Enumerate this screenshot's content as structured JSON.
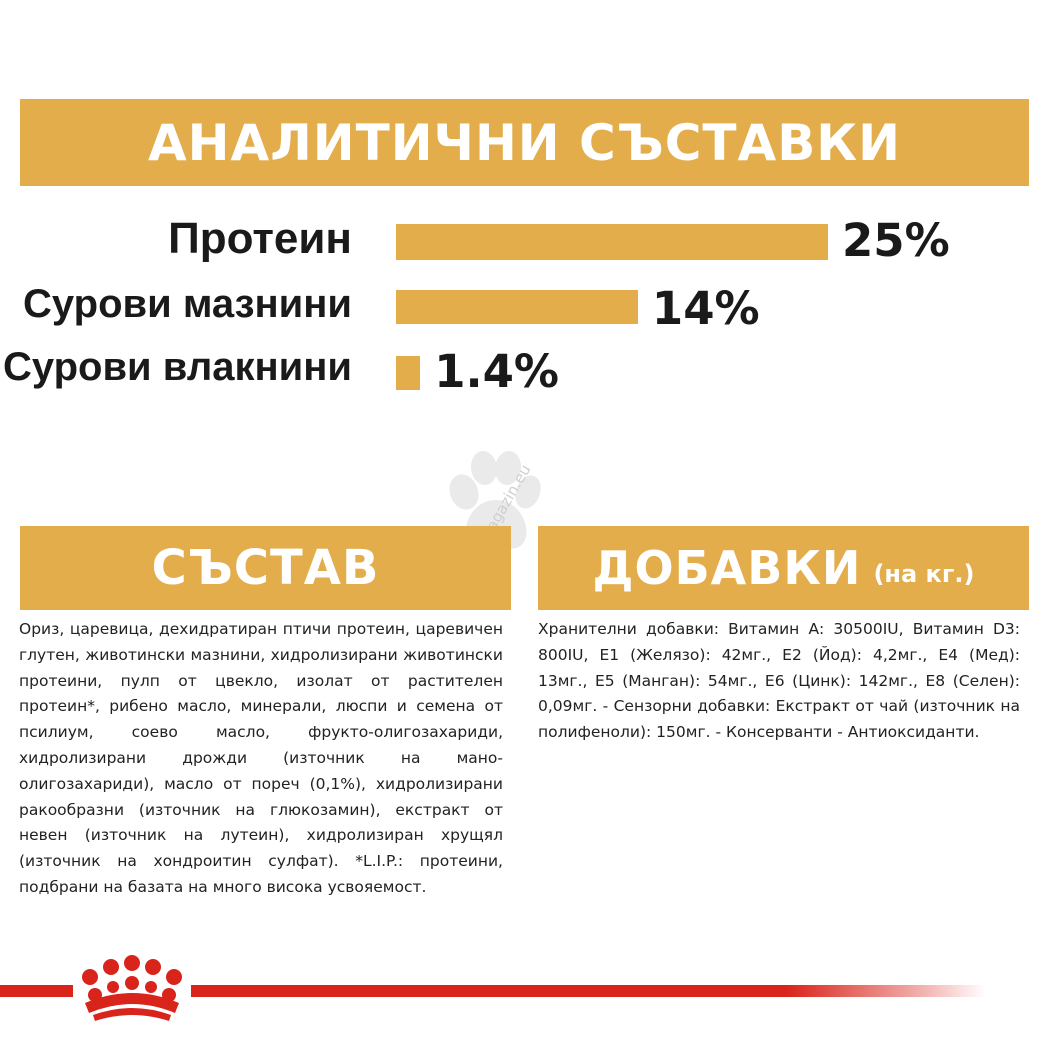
{
  "analytical": {
    "title": "АНАЛИТИЧНИ СЪСТАВКИ",
    "rows": [
      {
        "label": "Протеин",
        "value_text": "25%",
        "value": 25
      },
      {
        "label": "Сурови мазнини",
        "value_text": "14%",
        "value": 14
      },
      {
        "label": "Сурови влакнини",
        "value_text": "1.4%",
        "value": 1.4
      }
    ]
  },
  "composition": {
    "title": "СЪСТАВ",
    "text": "Ориз, царевица, дехидратиран птичи протеин, царевичен глутен, животински мазнини, хидролизирани животински протеини, пулп от цвекло, изолат от растителен протеин*, рибено масло, минерали, люспи и семена от псилиум, соево масло, фрукто-олигозахариди, хидролизирани дрожди (източник на мано- олигозахариди), масло от пореч (0,1%), хидролизирани ракообразни (източник на глюкозамин), екстракт от невен (източник на лутеин), хидролизиран хрущял (източник на хондроитин сулфат). *L.I.P.: протеини, подбрани на базата на много висока усвояемост."
  },
  "additives": {
    "title": "ДОБАВКИ",
    "title_suffix": "(на кг.)",
    "text": "Хранителни добавки: Витамин А: 30500IU, Витамин D3: 800IU, Е1 (Желязо): 42мг., Е2 (Йод): 4,2мг., Е4 (Мед): 13мг., Е5 (Манган): 54мг., Е6 (Цинк): 142мг., Е8 (Селен): 0,09мг. - Сензорни добавки: Екстракт от чай (източник на полифеноли): 150мг. - Консерванти - Антиоксиданти."
  },
  "watermark": {
    "text": "zoomagazin.eu"
  },
  "colors": {
    "accent": "#e3ad4c",
    "brand_red": "#d9241c",
    "text": "#1a1a1a"
  },
  "icons": {
    "logo": "royal-canin-crown-icon",
    "watermark": "paw-icon"
  }
}
